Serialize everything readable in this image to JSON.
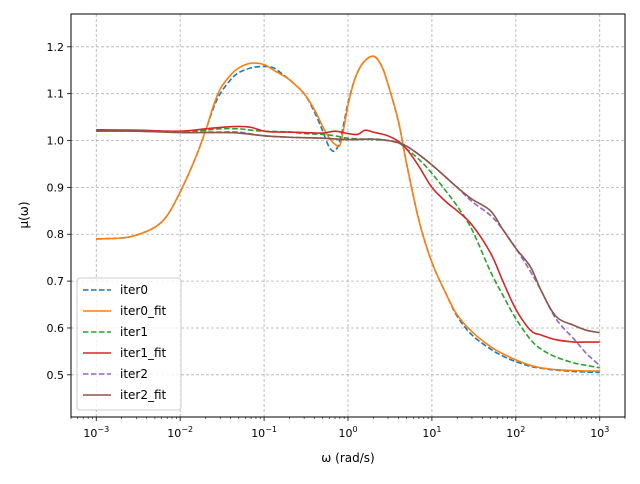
{
  "chart_data": {
    "type": "line",
    "xlabel": "ω (rad/s)",
    "ylabel": "μ(ω)",
    "xscale": "log",
    "xlim": [
      0.0005,
      2000
    ],
    "ylim": [
      0.41,
      1.27
    ],
    "grid": true,
    "legend_loc": "lower left",
    "x_ticks": [
      {
        "value": 0.001,
        "base": "10",
        "exp": "−3"
      },
      {
        "value": 0.01,
        "base": "10",
        "exp": "−2"
      },
      {
        "value": 0.1,
        "base": "10",
        "exp": "−1"
      },
      {
        "value": 1,
        "base": "10",
        "exp": "0"
      },
      {
        "value": 10,
        "base": "10",
        "exp": "1"
      },
      {
        "value": 100,
        "base": "10",
        "exp": "2"
      },
      {
        "value": 1000,
        "base": "10",
        "exp": "3"
      }
    ],
    "y_ticks": [
      {
        "value": 0.5,
        "label": "0.5"
      },
      {
        "value": 0.6,
        "label": "0.6"
      },
      {
        "value": 0.7,
        "label": "0.7"
      },
      {
        "value": 0.8,
        "label": "0.8"
      },
      {
        "value": 0.9,
        "label": "0.9"
      },
      {
        "value": 1.0,
        "label": "1.0"
      },
      {
        "value": 1.1,
        "label": "1.1"
      },
      {
        "value": 1.2,
        "label": "1.2"
      }
    ],
    "series": [
      {
        "name": "iter0",
        "color": "#1f77b4",
        "dashed": true,
        "x": [
          0.001,
          0.002,
          0.003,
          0.005,
          0.007,
          0.01,
          0.015,
          0.02,
          0.025,
          0.03,
          0.04,
          0.05,
          0.07,
          0.1,
          0.13,
          0.17,
          0.2,
          0.3,
          0.4,
          0.5,
          0.6,
          0.7,
          0.8,
          0.9,
          1.0,
          1.2,
          1.5,
          2.0,
          2.5,
          3.0,
          4.0,
          5.0,
          7.0,
          10,
          15,
          20,
          30,
          50,
          70,
          100,
          150,
          200,
          300,
          500,
          700,
          1000
        ],
        "y": [
          0.79,
          0.792,
          0.798,
          0.815,
          0.84,
          0.89,
          0.96,
          1.02,
          1.07,
          1.1,
          1.13,
          1.145,
          1.155,
          1.158,
          1.155,
          1.14,
          1.13,
          1.1,
          1.06,
          1.02,
          0.985,
          0.978,
          1.0,
          1.04,
          1.08,
          1.13,
          1.165,
          1.18,
          1.16,
          1.12,
          1.04,
          0.95,
          0.83,
          0.74,
          0.67,
          0.625,
          0.585,
          0.555,
          0.54,
          0.528,
          0.518,
          0.514,
          0.51,
          0.507,
          0.506,
          0.505
        ]
      },
      {
        "name": "iter0_fit",
        "color": "#ff7f0e",
        "dashed": false,
        "x": [
          0.001,
          0.002,
          0.003,
          0.005,
          0.007,
          0.01,
          0.015,
          0.02,
          0.025,
          0.03,
          0.04,
          0.05,
          0.07,
          0.1,
          0.13,
          0.17,
          0.2,
          0.3,
          0.4,
          0.5,
          0.6,
          0.7,
          0.8,
          0.9,
          1.0,
          1.2,
          1.5,
          2.0,
          2.5,
          3.0,
          4.0,
          5.0,
          7.0,
          10,
          15,
          20,
          30,
          50,
          70,
          100,
          150,
          200,
          300,
          500,
          700,
          1000
        ],
        "y": [
          0.79,
          0.792,
          0.798,
          0.815,
          0.84,
          0.89,
          0.96,
          1.02,
          1.075,
          1.11,
          1.14,
          1.155,
          1.165,
          1.162,
          1.15,
          1.138,
          1.13,
          1.1,
          1.065,
          1.03,
          1.005,
          0.992,
          0.99,
          1.03,
          1.075,
          1.13,
          1.165,
          1.18,
          1.16,
          1.12,
          1.04,
          0.95,
          0.83,
          0.74,
          0.67,
          0.628,
          0.592,
          0.56,
          0.545,
          0.532,
          0.52,
          0.515,
          0.511,
          0.509,
          0.508,
          0.508
        ]
      },
      {
        "name": "iter1",
        "color": "#2ca02c",
        "dashed": true,
        "x": [
          0.001,
          0.003,
          0.01,
          0.02,
          0.03,
          0.05,
          0.07,
          0.1,
          0.2,
          0.3,
          0.5,
          0.7,
          1.0,
          1.5,
          2.0,
          3.0,
          4.0,
          5.0,
          7.0,
          10,
          15,
          20,
          30,
          50,
          70,
          100,
          150,
          200,
          300,
          500,
          700,
          1000
        ],
        "y": [
          1.022,
          1.021,
          1.019,
          1.022,
          1.025,
          1.025,
          1.022,
          1.02,
          1.018,
          1.015,
          1.013,
          1.01,
          1.005,
          1.003,
          1.002,
          1.0,
          0.995,
          0.982,
          0.96,
          0.93,
          0.89,
          0.86,
          0.81,
          0.72,
          0.67,
          0.62,
          0.575,
          0.555,
          0.538,
          0.525,
          0.52,
          0.515
        ]
      },
      {
        "name": "iter1_fit",
        "color": "#d62728",
        "dashed": false,
        "x": [
          0.001,
          0.003,
          0.01,
          0.02,
          0.03,
          0.05,
          0.07,
          0.1,
          0.15,
          0.2,
          0.3,
          0.5,
          0.7,
          1.0,
          1.3,
          1.6,
          2.0,
          3.0,
          4.0,
          5.0,
          7.0,
          10,
          15,
          20,
          30,
          50,
          70,
          100,
          150,
          200,
          300,
          500,
          700,
          1000
        ],
        "y": [
          1.023,
          1.022,
          1.02,
          1.025,
          1.028,
          1.03,
          1.028,
          1.02,
          1.018,
          1.018,
          1.017,
          1.016,
          1.02,
          1.015,
          1.013,
          1.022,
          1.018,
          1.01,
          0.998,
          0.982,
          0.945,
          0.9,
          0.868,
          0.85,
          0.82,
          0.76,
          0.7,
          0.64,
          0.595,
          0.585,
          0.575,
          0.57,
          0.57,
          0.57
        ]
      },
      {
        "name": "iter2",
        "color": "#9467bd",
        "dashed": true,
        "x": [
          0.001,
          0.003,
          0.01,
          0.02,
          0.03,
          0.05,
          0.1,
          0.2,
          0.3,
          0.5,
          1.0,
          2.0,
          3.0,
          4.0,
          5.0,
          7.0,
          10,
          15,
          20,
          30,
          50,
          70,
          100,
          150,
          200,
          300,
          500,
          700,
          1000
        ],
        "y": [
          1.02,
          1.02,
          1.018,
          1.018,
          1.018,
          1.018,
          1.01,
          1.007,
          1.006,
          1.005,
          1.002,
          1.003,
          1.0,
          0.995,
          0.988,
          0.97,
          0.948,
          0.92,
          0.9,
          0.87,
          0.84,
          0.81,
          0.77,
          0.72,
          0.68,
          0.62,
          0.575,
          0.545,
          0.52
        ]
      },
      {
        "name": "iter2_fit",
        "color": "#8c564b",
        "dashed": false,
        "x": [
          0.001,
          0.003,
          0.01,
          0.02,
          0.03,
          0.05,
          0.1,
          0.2,
          0.3,
          0.5,
          1.0,
          2.0,
          3.0,
          4.0,
          5.0,
          7.0,
          10,
          15,
          20,
          30,
          50,
          70,
          100,
          150,
          200,
          300,
          500,
          700,
          1000
        ],
        "y": [
          1.02,
          1.02,
          1.017,
          1.017,
          1.017,
          1.016,
          1.01,
          1.007,
          1.006,
          1.005,
          1.002,
          1.003,
          1.0,
          0.995,
          0.988,
          0.97,
          0.948,
          0.92,
          0.9,
          0.875,
          0.85,
          0.81,
          0.77,
          0.73,
          0.68,
          0.625,
          0.605,
          0.595,
          0.59
        ]
      }
    ]
  }
}
